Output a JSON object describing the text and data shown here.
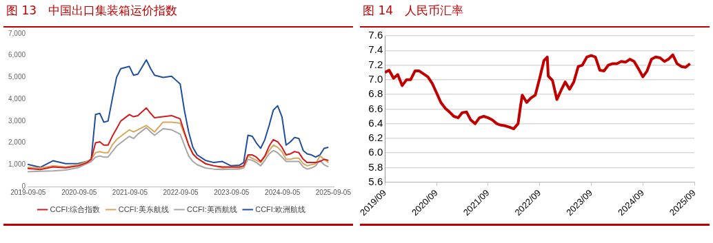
{
  "chart_data": [
    {
      "type": "line",
      "title": "图 13　中国出口集装箱运价指数",
      "legend": "bottom",
      "x": [
        "2019-09",
        "2019-12",
        "2020-03",
        "2020-06",
        "2020-09",
        "2020-11",
        "2020-12",
        "2021-01",
        "2021-02",
        "2021-03",
        "2021-04",
        "2021-05",
        "2021-06",
        "2021-07",
        "2021-09",
        "2021-10",
        "2021-11",
        "2022-01",
        "2022-02",
        "2022-03",
        "2022-05",
        "2022-07",
        "2022-09",
        "2022-10",
        "2022-11",
        "2022-12",
        "2023-01",
        "2023-03",
        "2023-05",
        "2023-07",
        "2023-09",
        "2023-11",
        "2023-12",
        "2024-01",
        "2024-02",
        "2024-03",
        "2024-04",
        "2024-05",
        "2024-06",
        "2024-07",
        "2024-08",
        "2024-09",
        "2024-10",
        "2024-11",
        "2024-12",
        "2025-01",
        "2025-02",
        "2025-03",
        "2025-04",
        "2025-05",
        "2025-06",
        "2025-07",
        "2025-08"
      ],
      "series": [
        {
          "name": "CCFI:综合指数",
          "color": "#d01c1f",
          "values": [
            830,
            780,
            900,
            860,
            950,
            1100,
            1250,
            2000,
            2050,
            1900,
            1900,
            2300,
            2650,
            3000,
            3300,
            3200,
            3250,
            3600,
            3350,
            3150,
            3200,
            3250,
            3100,
            2500,
            1900,
            1500,
            1300,
            1050,
            950,
            900,
            900,
            900,
            950,
            1450,
            1450,
            1350,
            1150,
            1400,
            1850,
            2150,
            2050,
            1800,
            1450,
            1500,
            1600,
            1550,
            1250,
            1100,
            1100,
            1100,
            1150,
            1250,
            1200
          ]
        },
        {
          "name": "CCFI:美东航线",
          "color": "#d9a65e",
          "values": [
            880,
            850,
            950,
            900,
            1000,
            1150,
            1250,
            1550,
            1600,
            1550,
            1550,
            1900,
            2150,
            2300,
            2600,
            2500,
            2600,
            2800,
            2650,
            2500,
            2950,
            2950,
            2900,
            2400,
            1900,
            1500,
            1300,
            1050,
            950,
            850,
            880,
            850,
            920,
            1400,
            1300,
            1200,
            1100,
            1350,
            1650,
            1900,
            1800,
            1600,
            1250,
            1250,
            1300,
            1300,
            1050,
            950,
            1000,
            1050,
            1400,
            1250,
            1100
          ]
        },
        {
          "name": "CCFI:美西航线",
          "color": "#a6a6a6",
          "values": [
            680,
            700,
            720,
            760,
            870,
            1050,
            1150,
            1350,
            1400,
            1350,
            1350,
            1600,
            1850,
            2000,
            2300,
            2200,
            2400,
            2700,
            2500,
            2350,
            2650,
            2600,
            2400,
            1900,
            1400,
            1150,
            1000,
            850,
            800,
            780,
            800,
            800,
            850,
            1250,
            1200,
            1100,
            950,
            1200,
            1500,
            1650,
            1550,
            1350,
            1150,
            1150,
            1150,
            1150,
            900,
            800,
            850,
            950,
            1200,
            1000,
            900
          ]
        },
        {
          "name": "CCFI:欧洲航线",
          "color": "#1f4e9e",
          "values": [
            1020,
            880,
            1180,
            1050,
            1060,
            1150,
            1250,
            3300,
            3350,
            2950,
            3000,
            4000,
            5000,
            5400,
            5500,
            5100,
            5150,
            5800,
            5400,
            5100,
            5000,
            5050,
            4700,
            3500,
            2500,
            1800,
            1450,
            1200,
            1100,
            1150,
            950,
            980,
            1100,
            2350,
            2300,
            2000,
            1750,
            2150,
            2800,
            3500,
            3700,
            3200,
            1900,
            2050,
            2250,
            2200,
            1650,
            1500,
            1450,
            1350,
            1450,
            1750,
            1800
          ]
        }
      ],
      "xlim": [
        "2019-09-01",
        "2025-09-10"
      ],
      "xticks": [
        "2019-09-05",
        "2020-09-05",
        "2021-09-05",
        "2022-09-05",
        "2023-09-05",
        "2024-09-05",
        "2025-09-05"
      ],
      "ylim": [
        0,
        7000
      ],
      "yticks": [
        0,
        {
          "value": 1000,
          "label": "1,000"
        },
        {
          "value": 2000,
          "label": "2,000"
        },
        {
          "value": 3000,
          "label": "3,000"
        },
        {
          "value": 4000,
          "label": "4,000"
        },
        {
          "value": 5000,
          "label": "5,000"
        },
        {
          "value": 6000,
          "label": "6,000"
        },
        {
          "value": 7000,
          "label": "7,000"
        }
      ]
    },
    {
      "type": "line",
      "title": "图 14　人民币汇率",
      "grid": "y",
      "x": [
        "2019-09",
        "2019-10",
        "2019-11",
        "2019-12",
        "2020-01",
        "2020-02",
        "2020-03",
        "2020-04",
        "2020-05",
        "2020-06",
        "2020-07",
        "2020-08",
        "2020-09",
        "2020-10",
        "2020-11",
        "2020-12",
        "2021-01",
        "2021-02",
        "2021-03",
        "2021-04",
        "2021-05",
        "2021-06",
        "2021-07",
        "2021-08",
        "2021-09",
        "2021-10",
        "2021-11",
        "2021-12",
        "2022-01",
        "2022-02",
        "2022-03",
        "2022-04",
        "2022-04-20",
        "2022-05",
        "2022-06",
        "2022-07",
        "2022-08",
        "2022-09",
        "2022-10",
        "2022-10-25",
        "2022-11",
        "2022-12",
        "2023-01",
        "2023-02",
        "2023-03",
        "2023-04",
        "2023-05",
        "2023-06",
        "2023-07",
        "2023-08",
        "2023-09",
        "2023-10",
        "2023-11",
        "2023-12",
        "2024-01",
        "2024-02",
        "2024-03",
        "2024-04",
        "2024-05",
        "2024-06",
        "2024-07",
        "2024-08",
        "2024-09",
        "2024-10",
        "2024-11",
        "2024-12",
        "2025-01",
        "2025-02",
        "2025-03",
        "2025-04",
        "2025-05",
        "2025-06",
        "2025-07",
        "2025-08"
      ],
      "series": [
        {
          "color": "#c00000",
          "values": [
            7.1,
            7.13,
            7.02,
            7.07,
            6.92,
            7.0,
            7.0,
            7.12,
            7.12,
            7.08,
            7.04,
            6.95,
            6.82,
            6.69,
            6.61,
            6.56,
            6.5,
            6.48,
            6.55,
            6.56,
            6.45,
            6.4,
            6.48,
            6.5,
            6.48,
            6.45,
            6.4,
            6.38,
            6.37,
            6.35,
            6.33,
            6.4,
            6.66,
            6.79,
            6.69,
            6.75,
            6.79,
            7.02,
            7.26,
            7.31,
            7.05,
            6.99,
            6.73,
            6.86,
            6.97,
            6.87,
            6.97,
            7.18,
            7.2,
            7.31,
            7.33,
            7.31,
            7.13,
            7.12,
            7.2,
            7.22,
            7.22,
            7.25,
            7.24,
            7.28,
            7.25,
            7.15,
            7.04,
            7.12,
            7.28,
            7.31,
            7.3,
            7.25,
            7.28,
            7.34,
            7.22,
            7.18,
            7.17,
            7.22
          ]
        }
      ],
      "xlim": [
        "2019-09",
        "2025-09"
      ],
      "xticks": [
        {
          "value": "2019-09",
          "label": "2019/09"
        },
        {
          "value": "2020-09",
          "label": "2020/09"
        },
        {
          "value": "2021-09",
          "label": "2021/09"
        },
        {
          "value": "2022-09",
          "label": "2022/09"
        },
        {
          "value": "2023-09",
          "label": "2023/09"
        },
        {
          "value": "2024-09",
          "label": "2024/09"
        },
        {
          "value": "2025-09",
          "label": "2025/09"
        }
      ],
      "ylim": [
        5.6,
        7.6
      ],
      "yticks": [
        5.6,
        5.8,
        {
          "value": 6,
          "label": "6.0"
        },
        6.2,
        6.4,
        6.6,
        6.8,
        {
          "value": 7,
          "label": "7.0"
        },
        7.2,
        7.4,
        7.6
      ]
    }
  ]
}
